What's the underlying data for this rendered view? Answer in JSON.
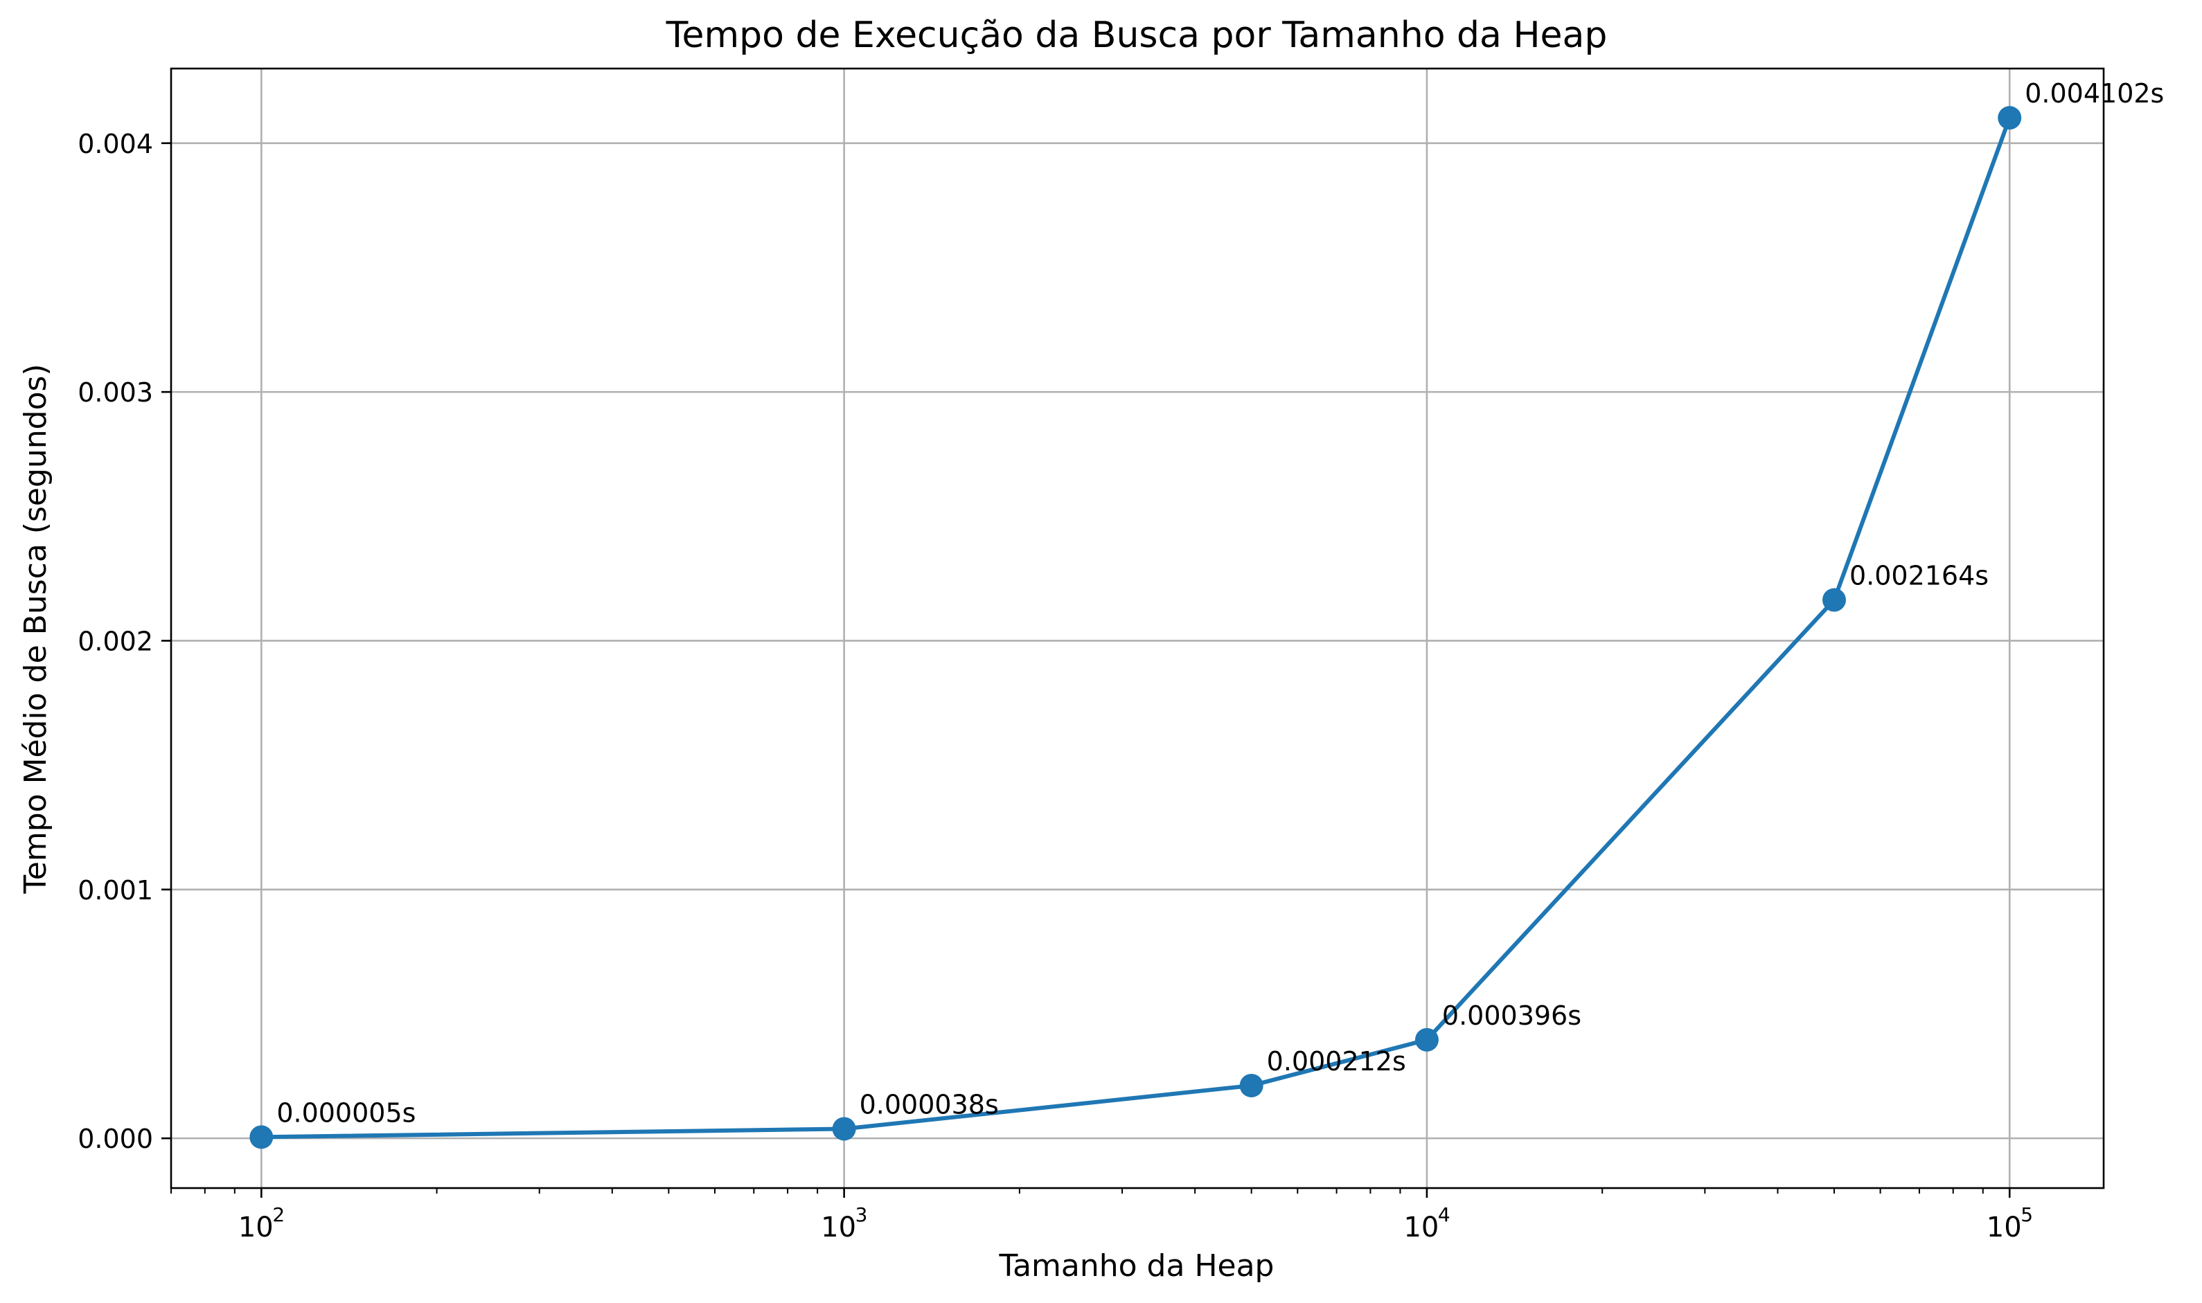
{
  "chart_data": {
    "type": "line",
    "title": "Tempo de Execução da Busca por Tamanho da Heap",
    "xlabel": "Tamanho da Heap",
    "ylabel": "Tempo Médio de Busca (segundos)",
    "x_scale": "log",
    "xlim": [
      70,
      145000
    ],
    "ylim": [
      -0.0002,
      0.0043
    ],
    "grid": true,
    "x_ticks": [
      {
        "value": 100,
        "base": "10",
        "exp": "2"
      },
      {
        "value": 1000,
        "base": "10",
        "exp": "3"
      },
      {
        "value": 10000,
        "base": "10",
        "exp": "4"
      },
      {
        "value": 100000,
        "base": "10",
        "exp": "5"
      }
    ],
    "y_ticks": [
      {
        "value": 0.0,
        "label": "0.000"
      },
      {
        "value": 0.001,
        "label": "0.001"
      },
      {
        "value": 0.002,
        "label": "0.002"
      },
      {
        "value": 0.003,
        "label": "0.003"
      },
      {
        "value": 0.004,
        "label": "0.004"
      }
    ],
    "series": [
      {
        "color": "#1f77b4",
        "points": [
          {
            "x": 100,
            "y": 5e-06,
            "label": "0.000005s"
          },
          {
            "x": 1000,
            "y": 3.8e-05,
            "label": "0.000038s"
          },
          {
            "x": 5000,
            "y": 0.000212,
            "label": "0.000212s"
          },
          {
            "x": 10000,
            "y": 0.000396,
            "label": "0.000396s"
          },
          {
            "x": 50000,
            "y": 0.002164,
            "label": "0.002164s"
          },
          {
            "x": 100000,
            "y": 0.004102,
            "label": "0.004102s"
          }
        ]
      }
    ]
  }
}
